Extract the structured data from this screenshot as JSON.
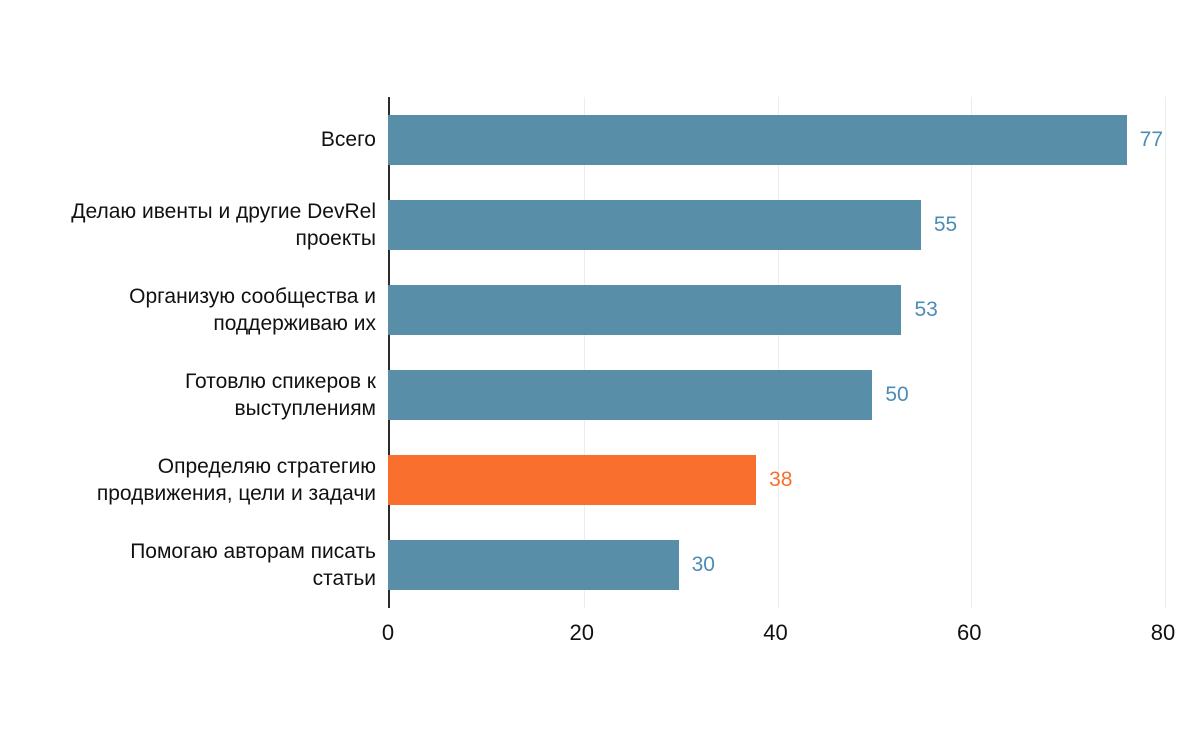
{
  "chart_data": {
    "type": "bar",
    "orientation": "horizontal",
    "title": "",
    "xlabel": "",
    "ylabel": "",
    "categories": [
      "Всего",
      "Делаю ивенты и другие DevRel проекты",
      "Организую сообщества и поддерживаю их",
      "Готовлю спикеров к выступлениям",
      "Определяю стратегию продвижения, цели и задачи",
      "Помогаю авторам писать статьи"
    ],
    "values": [
      77,
      55,
      53,
      50,
      38,
      30
    ],
    "xlim": [
      0,
      80
    ],
    "xticks": [
      0,
      20,
      40,
      60,
      80
    ],
    "grid": true,
    "legend": "none",
    "value_labels_shown": true,
    "bar_color": "#588EA8",
    "highlight_color": "#F9702E",
    "highlight_index": 4,
    "value_label_color": "#4D8CB5",
    "background_color": "#FFFFFF"
  },
  "bars": [
    {
      "label_lines": [
        "Всего"
      ],
      "value": 77,
      "color": "#588EA8",
      "value_color": "#4D8CB5"
    },
    {
      "label_lines": [
        "Делаю ивенты и другие DevRel",
        "проекты"
      ],
      "value": 55,
      "color": "#588EA8",
      "value_color": "#4D8CB5"
    },
    {
      "label_lines": [
        "Организую сообщества и",
        "поддерживаю их"
      ],
      "value": 53,
      "color": "#588EA8",
      "value_color": "#4D8CB5"
    },
    {
      "label_lines": [
        "Готовлю спикеров к",
        "выступлениям"
      ],
      "value": 50,
      "color": "#588EA8",
      "value_color": "#4D8CB5"
    },
    {
      "label_lines": [
        "Определяю стратегию",
        "продвижения, цели и задачи"
      ],
      "value": 38,
      "color": "#F9702E",
      "value_color": "#F9702E"
    },
    {
      "label_lines": [
        "Помогаю авторам писать",
        "статьи"
      ],
      "value": 30,
      "color": "#588EA8",
      "value_color": "#4D8CB5"
    }
  ],
  "x_axis": {
    "ticks": [
      "0",
      "20",
      "40",
      "60",
      "80"
    ]
  }
}
